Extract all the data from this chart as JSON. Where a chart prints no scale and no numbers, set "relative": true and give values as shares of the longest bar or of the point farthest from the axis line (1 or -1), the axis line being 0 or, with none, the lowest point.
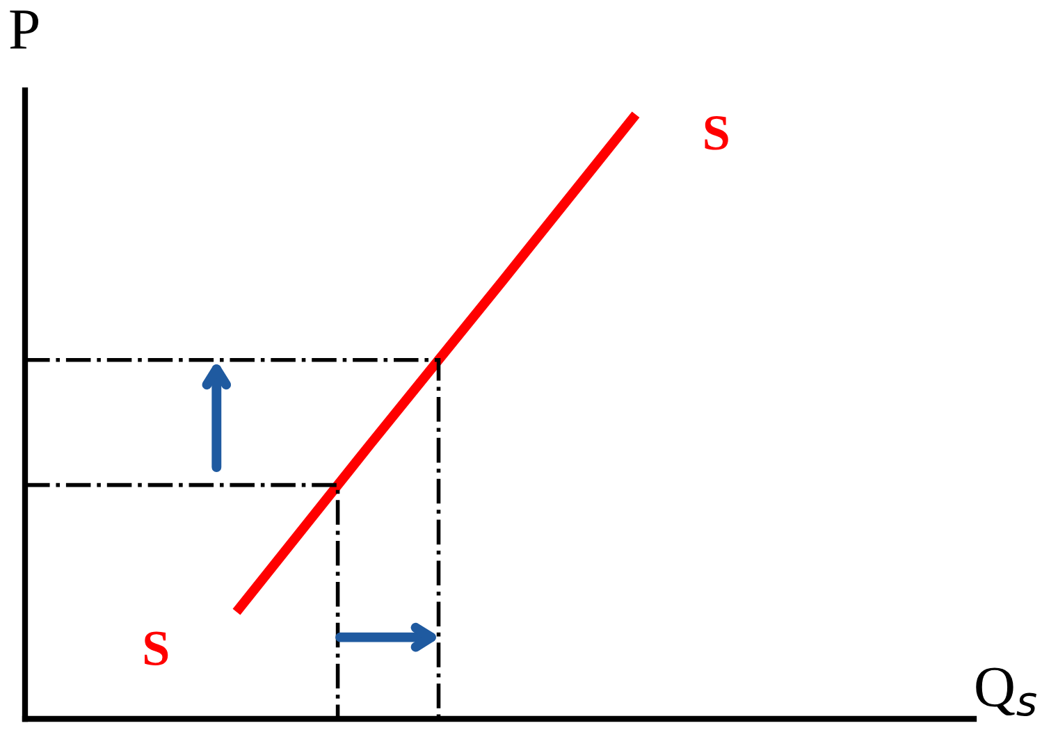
{
  "chart_data": {
    "type": "line",
    "relative": true,
    "annotations": [
      "Q$_{s}$"
    ],
    "ylabel": "P",
    "categories": [
      null,
      null,
      null,
      null
    ],
    "series": [
      {
        "name": "S",
        "color": "#ff0000",
        "values": [
          0.177,
          0.453,
          0.725,
          1.0
        ]
      }
    ],
    "ref_lines": [
      {
        "axis": "y",
        "value": 0.387,
        "color": "#000000",
        "line_style": "dashdot"
      },
      {
        "axis": "y",
        "value": 0.594,
        "color": "#000000",
        "line_style": "dashdot"
      }
    ],
    "legend": false,
    "marker": "none",
    "line_style": "solid"
  }
}
